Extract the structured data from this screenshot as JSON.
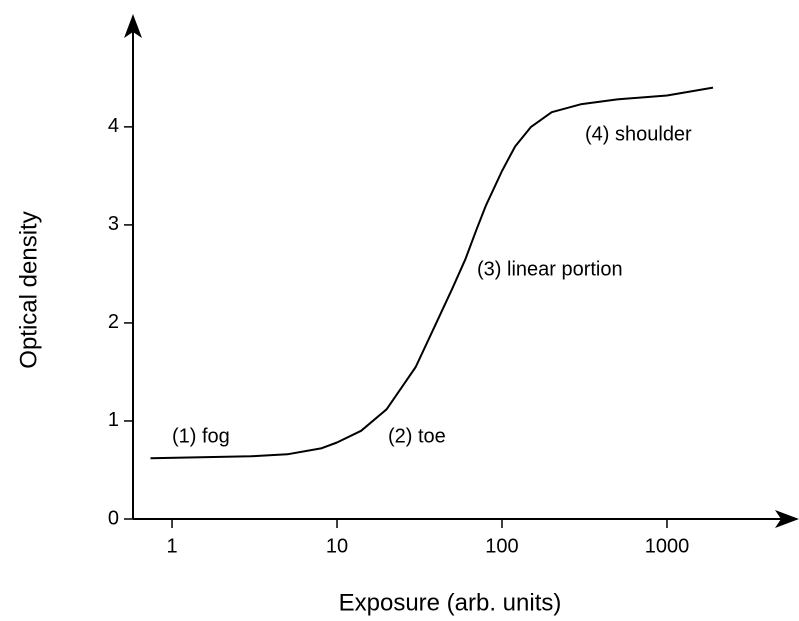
{
  "chart_data": {
    "type": "line",
    "xlabel": "Exposure (arb. units)",
    "ylabel": "Optical density",
    "xscale": "log",
    "xlim": [
      0.58,
      5970
    ],
    "ylim": [
      0,
      5.09
    ],
    "xticks": [
      1,
      10,
      100,
      1000
    ],
    "yticks": [
      0,
      1,
      2,
      3,
      4
    ],
    "grid": false,
    "series": [
      {
        "name": null,
        "color": "#000000",
        "x": [
          0.74,
          1.5,
          3,
          5,
          8,
          10,
          14,
          20,
          30,
          40,
          50,
          60,
          70,
          80,
          100,
          120,
          150,
          200,
          300,
          500,
          1000,
          1900
        ],
        "values": [
          0.62,
          0.63,
          0.64,
          0.66,
          0.72,
          0.78,
          0.9,
          1.12,
          1.55,
          2.0,
          2.35,
          2.65,
          2.95,
          3.2,
          3.55,
          3.8,
          4.0,
          4.15,
          4.23,
          4.28,
          4.32,
          4.4
        ]
      }
    ],
    "annotations": [
      "(1) fog",
      "(2) toe",
      "(3) linear portion",
      "(4) shoulder"
    ]
  }
}
